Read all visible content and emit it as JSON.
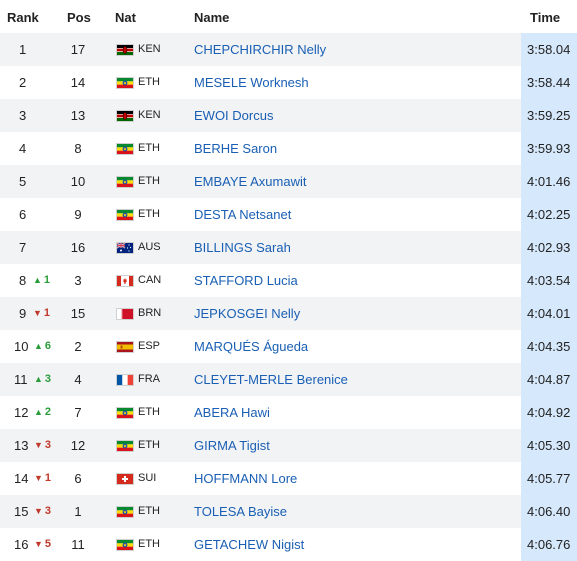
{
  "header": {
    "rank": "Rank",
    "pos": "Pos",
    "nat": "Nat",
    "name": "Name",
    "time": "Time"
  },
  "rows": [
    {
      "rank": "1",
      "change": "",
      "dir": "",
      "pos": "17",
      "nat": "KEN",
      "flag": "ken",
      "name": "CHEPCHIRCHIR Nelly",
      "time": "3:58.04"
    },
    {
      "rank": "2",
      "change": "",
      "dir": "",
      "pos": "14",
      "nat": "ETH",
      "flag": "eth",
      "name": "MESELE Worknesh",
      "time": "3:58.44"
    },
    {
      "rank": "3",
      "change": "",
      "dir": "",
      "pos": "13",
      "nat": "KEN",
      "flag": "ken",
      "name": "EWOI Dorcus",
      "time": "3:59.25"
    },
    {
      "rank": "4",
      "change": "",
      "dir": "",
      "pos": "8",
      "nat": "ETH",
      "flag": "eth",
      "name": "BERHE Saron",
      "time": "3:59.93"
    },
    {
      "rank": "5",
      "change": "",
      "dir": "",
      "pos": "10",
      "nat": "ETH",
      "flag": "eth",
      "name": "EMBAYE Axumawit",
      "time": "4:01.46"
    },
    {
      "rank": "6",
      "change": "",
      "dir": "",
      "pos": "9",
      "nat": "ETH",
      "flag": "eth",
      "name": "DESTA Netsanet",
      "time": "4:02.25"
    },
    {
      "rank": "7",
      "change": "",
      "dir": "",
      "pos": "16",
      "nat": "AUS",
      "flag": "aus",
      "name": "BILLINGS Sarah",
      "time": "4:02.93"
    },
    {
      "rank": "8",
      "change": "1",
      "dir": "up",
      "pos": "3",
      "nat": "CAN",
      "flag": "can",
      "name": "STAFFORD Lucia",
      "time": "4:03.54"
    },
    {
      "rank": "9",
      "change": "1",
      "dir": "down",
      "pos": "15",
      "nat": "BRN",
      "flag": "brn",
      "name": "JEPKOSGEI Nelly",
      "time": "4:04.01"
    },
    {
      "rank": "10",
      "change": "6",
      "dir": "up",
      "pos": "2",
      "nat": "ESP",
      "flag": "esp",
      "name": "MARQUÉS Águeda",
      "time": "4:04.35"
    },
    {
      "rank": "11",
      "change": "3",
      "dir": "up",
      "pos": "4",
      "nat": "FRA",
      "flag": "fra",
      "name": "CLEYET-MERLE Berenice",
      "time": "4:04.87"
    },
    {
      "rank": "12",
      "change": "2",
      "dir": "up",
      "pos": "7",
      "nat": "ETH",
      "flag": "eth",
      "name": "ABERA Hawi",
      "time": "4:04.92"
    },
    {
      "rank": "13",
      "change": "3",
      "dir": "down",
      "pos": "12",
      "nat": "ETH",
      "flag": "eth",
      "name": "GIRMA Tigist",
      "time": "4:05.30"
    },
    {
      "rank": "14",
      "change": "1",
      "dir": "down",
      "pos": "6",
      "nat": "SUI",
      "flag": "sui",
      "name": "HOFFMANN Lore",
      "time": "4:05.77"
    },
    {
      "rank": "15",
      "change": "3",
      "dir": "down",
      "pos": "1",
      "nat": "ETH",
      "flag": "eth",
      "name": "TOLESA Bayise",
      "time": "4:06.40"
    },
    {
      "rank": "16",
      "change": "5",
      "dir": "down",
      "pos": "11",
      "nat": "ETH",
      "flag": "eth",
      "name": "GETACHEW Nigist",
      "time": "4:06.76"
    }
  ],
  "colors": {
    "name_link": "#1a5fb4",
    "time_highlight": "#d6e8fb",
    "up": "#2a9d3a",
    "down": "#c0392b",
    "row_alt": "#f1f3f5"
  }
}
